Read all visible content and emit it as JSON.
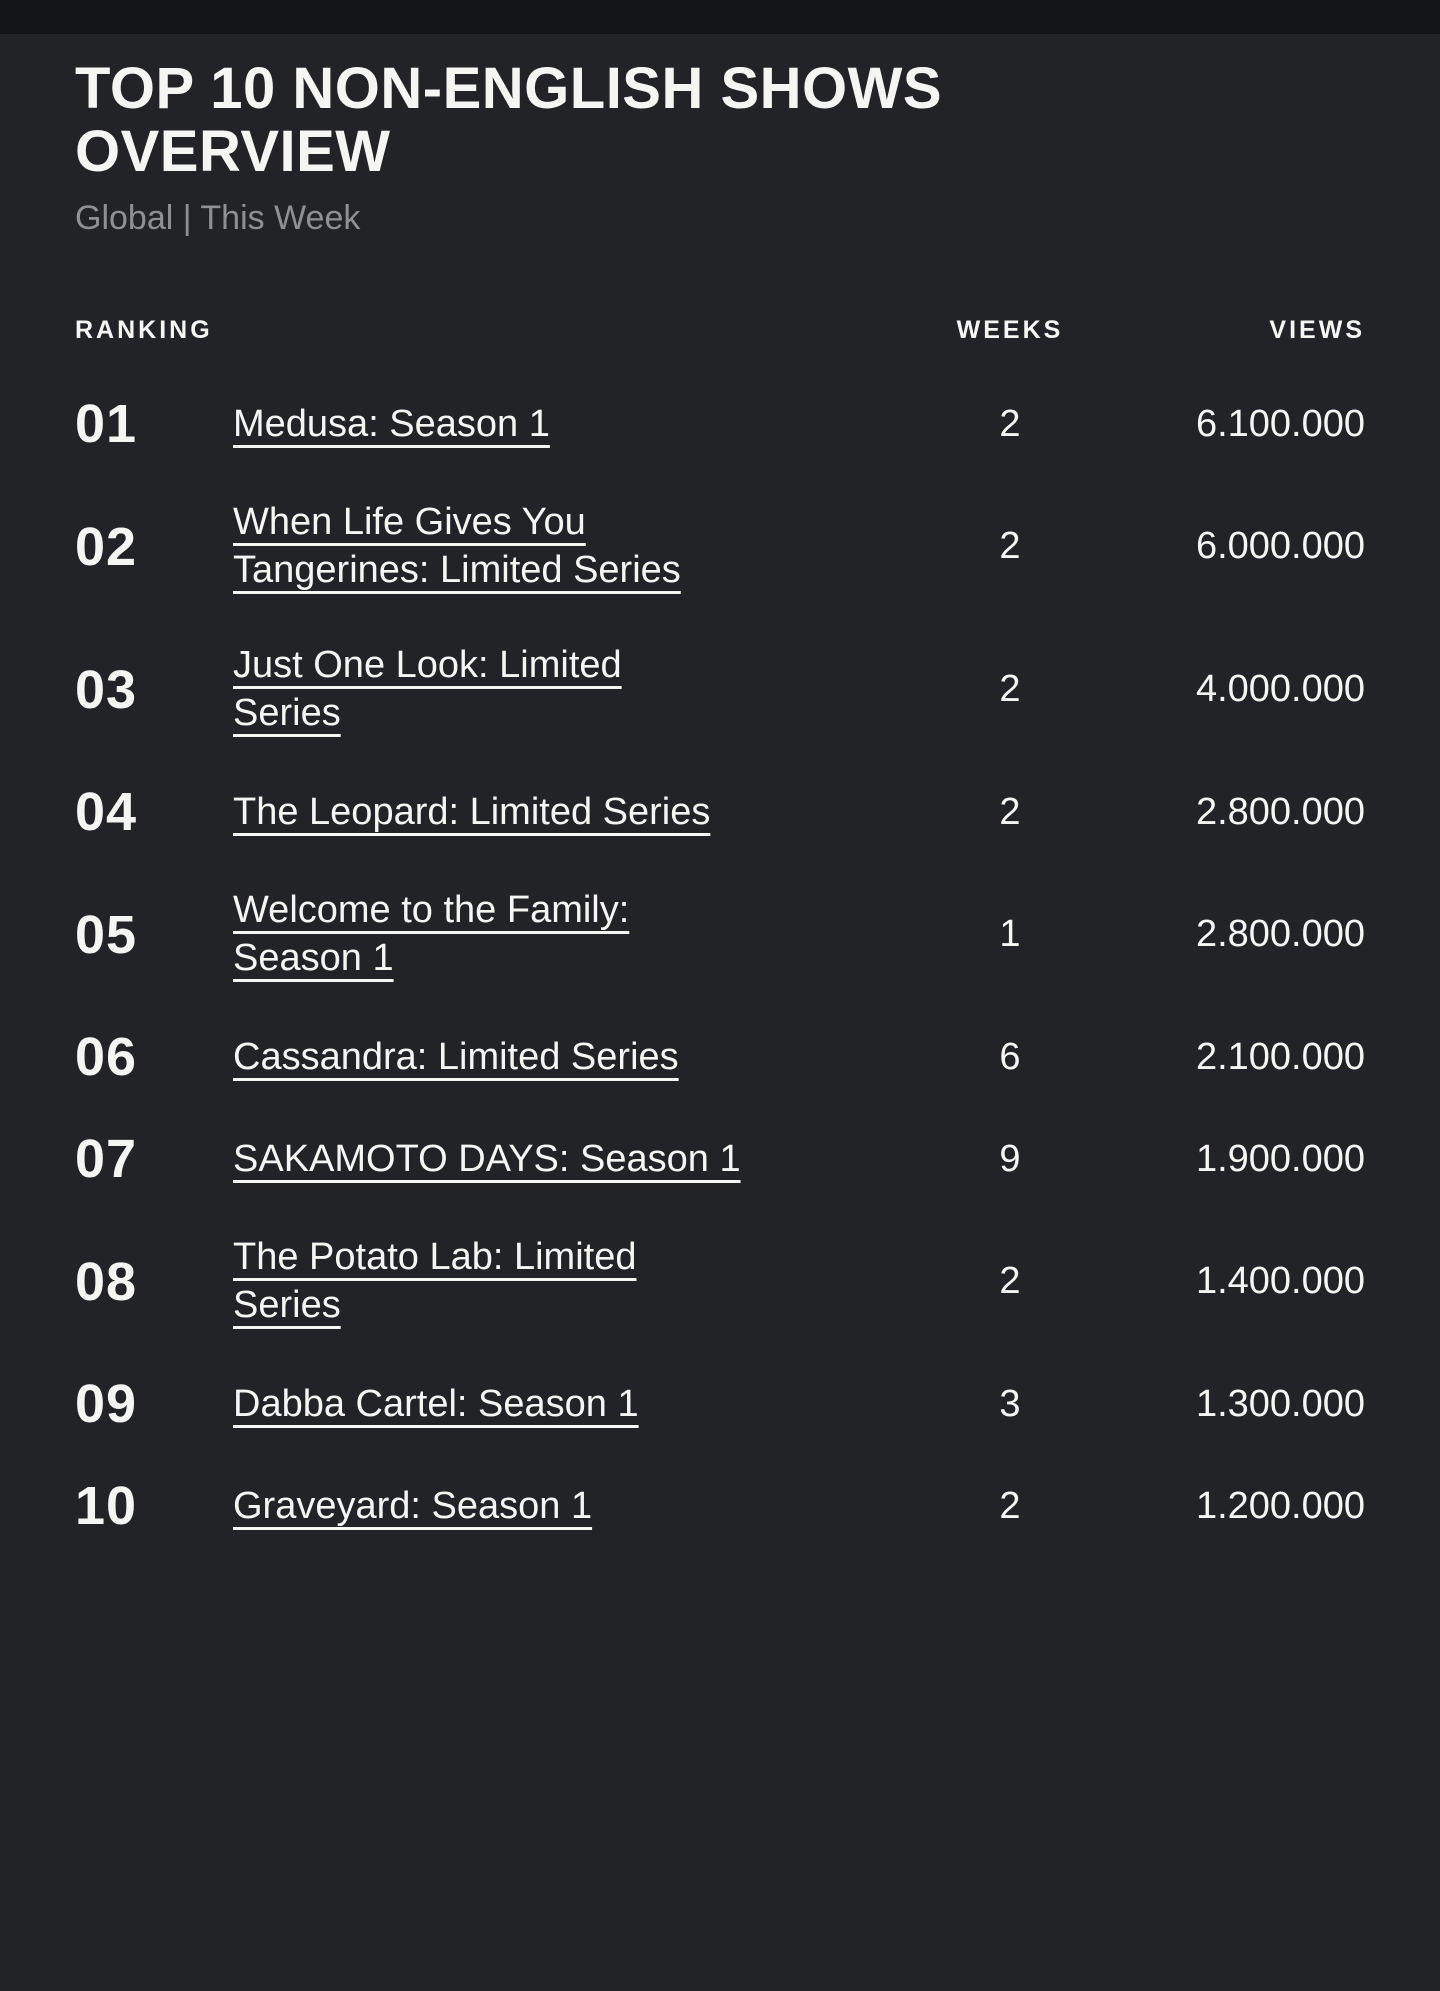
{
  "page": {
    "title": "TOP 10 NON-ENGLISH SHOWS OVERVIEW",
    "subtitle": "Global | This Week"
  },
  "table": {
    "headers": {
      "ranking": "RANKING",
      "weeks": "WEEKS",
      "views": "VIEWS"
    },
    "rows": [
      {
        "rank": "01",
        "title": "Medusa: Season 1",
        "weeks": "2",
        "views": "6.100.000"
      },
      {
        "rank": "02",
        "title": "When Life Gives You\nTangerines: Limited Series",
        "weeks": "2",
        "views": "6.000.000"
      },
      {
        "rank": "03",
        "title": "Just One Look: Limited\nSeries",
        "weeks": "2",
        "views": "4.000.000"
      },
      {
        "rank": "04",
        "title": "The Leopard: Limited Series",
        "weeks": "2",
        "views": "2.800.000"
      },
      {
        "rank": "05",
        "title": "Welcome to the Family:\nSeason 1",
        "weeks": "1",
        "views": "2.800.000"
      },
      {
        "rank": "06",
        "title": "Cassandra: Limited Series",
        "weeks": "6",
        "views": "2.100.000"
      },
      {
        "rank": "07",
        "title": "SAKAMOTO DAYS: Season 1",
        "weeks": "9",
        "views": "1.900.000"
      },
      {
        "rank": "08",
        "title": "The Potato Lab: Limited\nSeries",
        "weeks": "2",
        "views": "1.400.000"
      },
      {
        "rank": "09",
        "title": "Dabba Cartel: Season 1",
        "weeks": "3",
        "views": "1.300.000"
      },
      {
        "rank": "10",
        "title": "Graveyard: Season 1",
        "weeks": "2",
        "views": "1.200.000"
      }
    ]
  },
  "colors": {
    "background": "#222326",
    "top_bar": "#131416",
    "text": "#f5f5f4",
    "muted": "#8f9092"
  }
}
